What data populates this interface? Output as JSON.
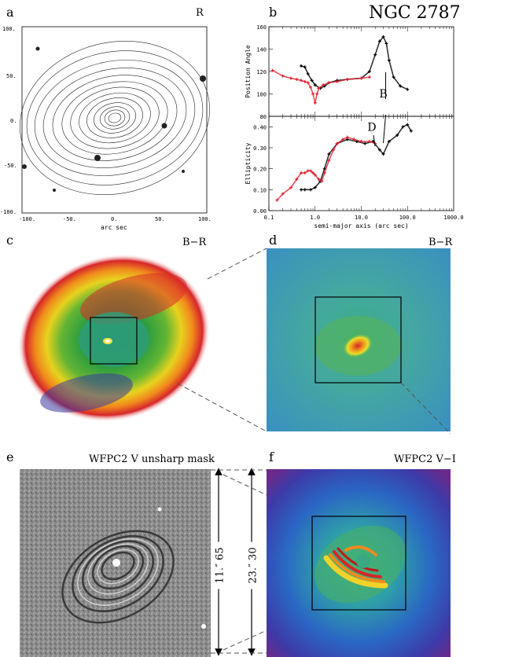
{
  "panels": {
    "a": {
      "label": "a",
      "band": "R",
      "x_ticks": [
        "-100.",
        "-50.",
        "0.",
        "50.",
        "100."
      ],
      "y_ticks": [
        "100.",
        "50.",
        "0.",
        "-50.",
        "-100."
      ],
      "xlabel": "arc sec"
    },
    "b": {
      "label": "b",
      "title": "NGC 2787"
    },
    "c": {
      "label": "c",
      "band": "B−R"
    },
    "d": {
      "label": "d",
      "band": "B−R"
    },
    "e": {
      "label": "e",
      "band": "WFPC2 V unsharp mask",
      "scale": "11.″ 65"
    },
    "f": {
      "label": "f",
      "band": "WFPC2 V−I",
      "scale": "23.″ 30"
    }
  },
  "chart_data": [
    {
      "type": "scatter",
      "panel": "b-top",
      "ylabel": "Position Angle",
      "ylim": [
        80,
        160
      ],
      "yticks": [
        "160",
        "140",
        "120",
        "100",
        "80"
      ],
      "xscale": "log",
      "xlim": [
        0.1,
        1000
      ],
      "annotations": [
        {
          "text": "B",
          "x": 30,
          "y": 97
        }
      ],
      "series": [
        {
          "name": "black",
          "color": "#000000",
          "x": [
            0.5,
            0.6,
            0.7,
            0.85,
            1.0,
            1.3,
            1.6,
            2.0,
            3.0,
            5.0,
            10,
            15,
            20,
            25,
            30,
            35,
            40,
            50,
            70,
            100
          ],
          "y": [
            125,
            124,
            118,
            112,
            108,
            105,
            107,
            110,
            112,
            113,
            114,
            120,
            135,
            147,
            151,
            145,
            130,
            115,
            107,
            104
          ]
        },
        {
          "name": "red",
          "color": "#dd2233",
          "x": [
            0.12,
            0.2,
            0.3,
            0.4,
            0.5,
            0.6,
            0.7,
            0.8,
            0.9,
            1.0,
            1.1,
            1.2,
            1.5,
            2.0,
            3.0,
            5.0,
            10,
            15
          ],
          "y": [
            121,
            116,
            114,
            113,
            112,
            111,
            110,
            106,
            100,
            92,
            100,
            105,
            108,
            110,
            111,
            113,
            114,
            115
          ]
        }
      ]
    },
    {
      "type": "scatter",
      "panel": "b-bottom",
      "ylabel": "Ellipticity",
      "xlabel": "semi-major axis (arc sec)",
      "ylim": [
        0.0,
        0.45
      ],
      "yticks": [
        "0.40",
        "0.30",
        "0.20",
        "0.10",
        "0.00"
      ],
      "xscale": "log",
      "xlim": [
        0.1,
        1000
      ],
      "xticks": [
        "0.1",
        "1.0",
        "10.0",
        "100.0",
        "1000.0"
      ],
      "annotations": [
        {
          "text": "D",
          "x": 17,
          "y": 0.38
        }
      ],
      "series": [
        {
          "name": "black",
          "color": "#000000",
          "x": [
            0.5,
            0.6,
            0.8,
            1.0,
            1.3,
            1.6,
            2.0,
            3.0,
            5.0,
            8,
            12,
            18,
            25,
            30,
            40,
            60,
            80,
            100,
            120
          ],
          "y": [
            0.1,
            0.1,
            0.1,
            0.11,
            0.14,
            0.2,
            0.27,
            0.32,
            0.34,
            0.33,
            0.32,
            0.33,
            0.29,
            0.27,
            0.33,
            0.36,
            0.4,
            0.41,
            0.38
          ]
        },
        {
          "name": "red",
          "color": "#dd2233",
          "x": [
            0.15,
            0.2,
            0.3,
            0.4,
            0.5,
            0.6,
            0.7,
            0.8,
            0.9,
            1.0,
            1.2,
            1.4,
            1.6,
            2.0,
            2.5,
            3.0,
            4.0,
            5.0,
            7,
            10,
            15,
            20
          ],
          "y": [
            0.05,
            0.08,
            0.11,
            0.15,
            0.18,
            0.18,
            0.19,
            0.19,
            0.18,
            0.17,
            0.15,
            0.14,
            0.18,
            0.24,
            0.29,
            0.32,
            0.34,
            0.35,
            0.34,
            0.33,
            0.33,
            0.32
          ]
        }
      ]
    }
  ]
}
